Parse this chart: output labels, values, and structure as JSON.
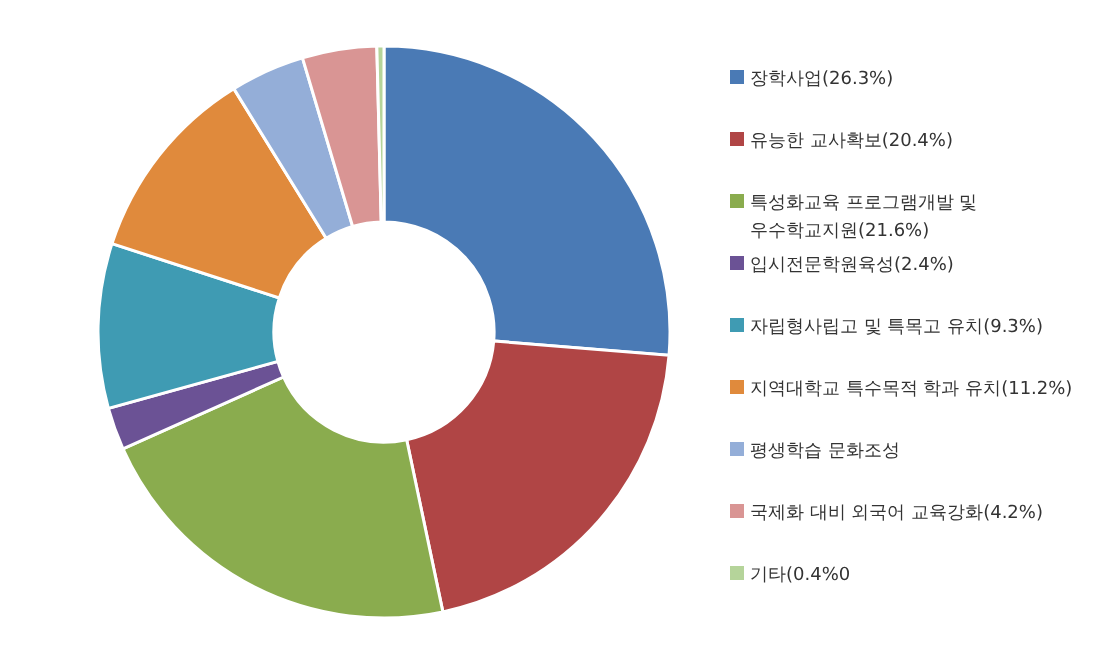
{
  "chart_data": {
    "type": "donut",
    "categories": [
      "장학사업(26.3%)",
      "유능한 교사확보(20.4%)",
      "특성화교육 프로그램개발 및 우수학교지원(21.6%)",
      "입시전문학원육성(2.4%)",
      "자립형사립고 및 특목고 유치(9.3%)",
      "지역대학교 특수목적 학과 유치(11.2%)",
      "평생학습 문화조성",
      "국제화 대비 외국어 교육강화(4.2%)",
      "기타(0.4%0"
    ],
    "values": [
      26.3,
      20.4,
      21.6,
      2.4,
      9.3,
      11.2,
      4.2,
      4.2,
      0.4
    ],
    "colors": [
      "#4a7ab5",
      "#b04545",
      "#8aac4e",
      "#6b5295",
      "#3f9bb3",
      "#e08a3c",
      "#94aed8",
      "#d99594",
      "#b5d49a"
    ],
    "legend": "right"
  }
}
